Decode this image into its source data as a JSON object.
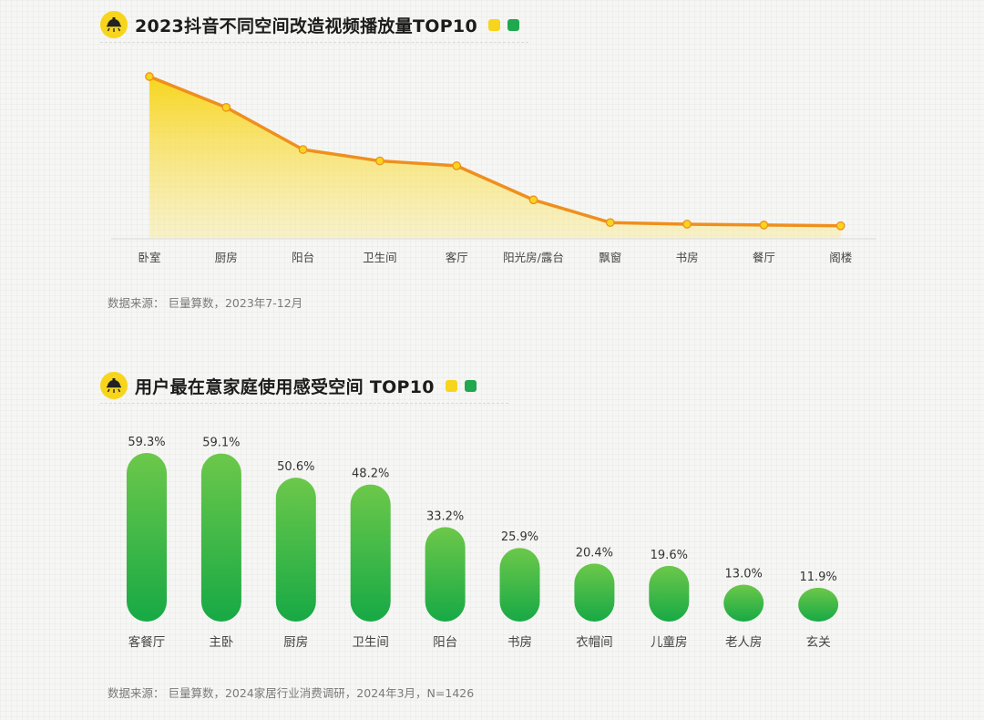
{
  "colors": {
    "yellow": "#f7d51d",
    "orange_line": "#ef8f1e",
    "green_top": "#6cc84a",
    "green_bottom": "#17a945",
    "title": "#1c1c1c",
    "label": "#444444",
    "source": "#7a7a7a"
  },
  "icons": {
    "section_badge": "lamp-icon"
  },
  "section1": {
    "title": "2023抖音不同空间改造视频播放量TOP10",
    "source": "数据来源：  巨量算数，2023年7-12月"
  },
  "section2": {
    "title": "用户最在意家庭使用感受空间 TOP10",
    "source": "数据来源：  巨量算数，2024家居行业消费调研，2024年3月，N=1426"
  },
  "chart_data": [
    {
      "type": "area",
      "title": "2023抖音不同空间改造视频播放量TOP10",
      "categories": [
        "卧室",
        "厨房",
        "阳台",
        "卫生间",
        "客厅",
        "阳光房/露台",
        "飘窗",
        "书房",
        "餐厅",
        "阁楼"
      ],
      "values": [
        100,
        81,
        55,
        48,
        45,
        24,
        10,
        9,
        8.5,
        8
      ],
      "value_axis_printed": false,
      "grid": false,
      "colors": {
        "line": "#ef8f1e",
        "fill": "#f7d51d"
      }
    },
    {
      "type": "bar",
      "title": "用户最在意家庭使用感受空间 TOP10",
      "categories": [
        "客餐厅",
        "主卧",
        "厨房",
        "卫生间",
        "阳台",
        "书房",
        "衣帽间",
        "儿童房",
        "老人房",
        "玄关"
      ],
      "values": [
        59.3,
        59.1,
        50.6,
        48.2,
        33.2,
        25.9,
        20.4,
        19.6,
        13.0,
        11.9
      ],
      "value_labels": [
        "59.3%",
        "59.1%",
        "50.6%",
        "48.2%",
        "33.2%",
        "25.9%",
        "20.4%",
        "19.6%",
        "13.0%",
        "11.9%"
      ],
      "unit": "%",
      "grid": false,
      "colors": {
        "top": "#6cc84a",
        "bottom": "#17a945"
      }
    }
  ]
}
